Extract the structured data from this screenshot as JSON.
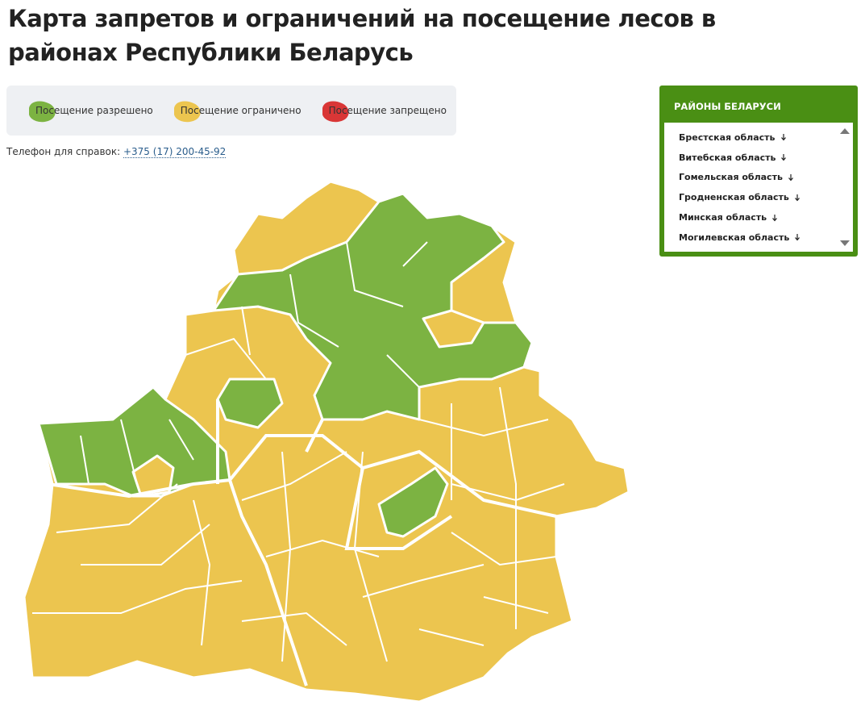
{
  "header": {
    "title": "Карта запретов и ограничений на посещение лесов в районах Республики Беларусь"
  },
  "legend": {
    "items": [
      {
        "label": "Посещение разрешено",
        "color": "#7cb342"
      },
      {
        "label": "Посещение ограничено",
        "color": "#ecc54f"
      },
      {
        "label": "Посещение запрещено",
        "color": "#d93636"
      }
    ]
  },
  "contact": {
    "label": "Телефон для справок:",
    "phone": "+375 (17) 200-45-92"
  },
  "sidebar": {
    "title": "РАЙОНЫ БЕЛАРУСИ",
    "regions": [
      "Брестская область",
      "Витебская область",
      "Гомельская область",
      "Гродненская область",
      "Минская область",
      "Могилевская область"
    ]
  }
}
